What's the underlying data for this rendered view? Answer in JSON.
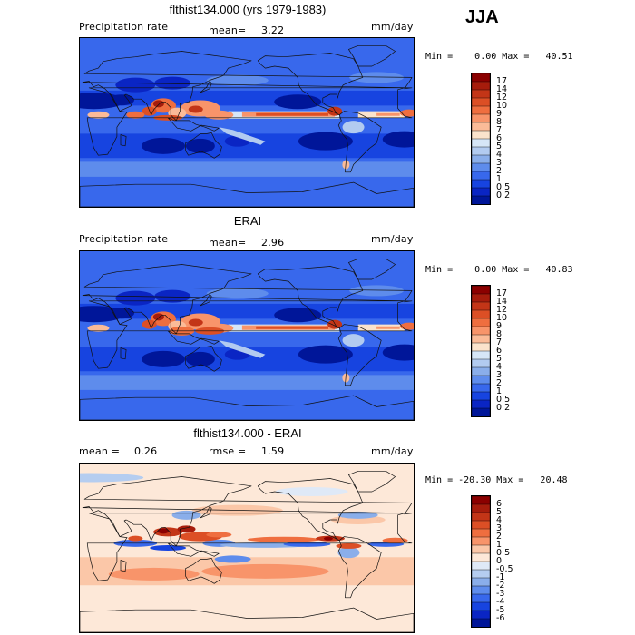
{
  "season": "JJA",
  "panels": [
    {
      "title": "flthist134.000 (yrs 1979-1983)",
      "left_label": "Precipitation rate",
      "mean_label": "mean=",
      "mean_value": "3.22",
      "units": "mm/day",
      "minmax": "Min =    0.00 Max =   40.51",
      "colorbar_labels": [
        "17",
        "14",
        "12",
        "10",
        "9",
        "8",
        "7",
        "6",
        "5",
        "4",
        "3",
        "2",
        "1",
        "0.5",
        "0.2"
      ],
      "colors": [
        "#8b0000",
        "#a61c0c",
        "#c33517",
        "#dc4f25",
        "#ef6e3f",
        "#f8946a",
        "#fbbb98",
        "#fbe3cc",
        "#d6e6f7",
        "#b2cbf0",
        "#8aaeea",
        "#5e8cec",
        "#3868ec",
        "#1744e0",
        "#0a25c4",
        "#001699"
      ]
    },
    {
      "title": "ERAI",
      "left_label": "Precipitation rate",
      "mean_label": "mean=",
      "mean_value": "2.96",
      "units": "mm/day",
      "minmax": "Min =    0.00 Max =   40.83",
      "colorbar_labels": [
        "17",
        "14",
        "12",
        "10",
        "9",
        "8",
        "7",
        "6",
        "5",
        "4",
        "3",
        "2",
        "1",
        "0.5",
        "0.2"
      ],
      "colors": [
        "#8b0000",
        "#a61c0c",
        "#c33517",
        "#dc4f25",
        "#ef6e3f",
        "#f8946a",
        "#fbbb98",
        "#fbe3cc",
        "#d6e6f7",
        "#b2cbf0",
        "#8aaeea",
        "#5e8cec",
        "#3868ec",
        "#1744e0",
        "#0a25c4",
        "#001699"
      ]
    },
    {
      "title": "flthist134.000 - ERAI",
      "mean_label": "mean =",
      "mean_value": "0.26",
      "rmse_label": "rmse =",
      "rmse_value": "1.59",
      "units": "mm/day",
      "minmax": "Min = -20.30 Max =   20.48",
      "colorbar_labels": [
        "6",
        "5",
        "4",
        "3",
        "2",
        "1",
        "0.5",
        "0",
        "-0.5",
        "-1",
        "-2",
        "-3",
        "-4",
        "-5",
        "-6"
      ],
      "colors": [
        "#8b0000",
        "#a61c0c",
        "#c33517",
        "#dc4f25",
        "#ef6e3f",
        "#f8946a",
        "#fbc7a8",
        "#fde8d8",
        "#dfe9f7",
        "#b5cdf0",
        "#8aaeea",
        "#5e8cec",
        "#3868ec",
        "#1744e0",
        "#0a25c4",
        "#001699"
      ]
    }
  ]
}
